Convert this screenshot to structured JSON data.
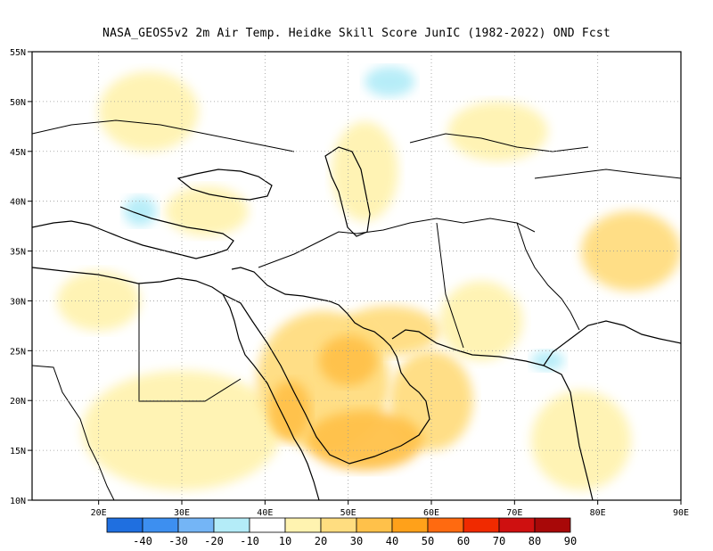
{
  "title": "NASA_GEOS5v2  2m Air Temp. Heidke Skill Score JunIC (1982-2022) OND Fcst",
  "map": {
    "lon_range": [
      12,
      90
    ],
    "lat_range": [
      10,
      55
    ],
    "lon_ticks": [
      "20E",
      "30E",
      "40E",
      "50E",
      "60E",
      "70E",
      "80E",
      "90E"
    ],
    "lon_tick_values": [
      20,
      30,
      40,
      50,
      60,
      70,
      80,
      90
    ],
    "lat_ticks": [
      "10N",
      "15N",
      "20N",
      "25N",
      "30N",
      "35N",
      "40N",
      "45N",
      "50N",
      "55N"
    ],
    "lat_tick_values": [
      10,
      15,
      20,
      25,
      30,
      35,
      40,
      45,
      50,
      55
    ],
    "gridlines": "dotted"
  },
  "colorbar": {
    "labels": [
      "-40",
      "-30",
      "-20",
      "-10",
      "10",
      "20",
      "30",
      "40",
      "50",
      "60",
      "70",
      "80",
      "90"
    ],
    "colors": [
      "#1f6fe0",
      "#3d8ff0",
      "#74b5f6",
      "#b4ecf8",
      "#ffffff",
      "#fff3b0",
      "#ffdd80",
      "#ffc14a",
      "#ffa11a",
      "#ff6a10",
      "#f02a00",
      "#cf1010",
      "#a80808"
    ]
  },
  "regions": [
    {
      "name": "arabia-sea-coast",
      "value": 40,
      "lon": 52,
      "lat": 16,
      "rx": 7,
      "ry": 3
    },
    {
      "name": "central-arabia",
      "value": 40,
      "lon": 50,
      "lat": 24,
      "rx": 3.5,
      "ry": 2.5
    },
    {
      "name": "red-sea-coast",
      "value": 40,
      "lon": 43,
      "lat": 19,
      "rx": 2.5,
      "ry": 3
    },
    {
      "name": "iran-south",
      "value": 30,
      "lon": 55,
      "lat": 27,
      "rx": 6,
      "ry": 2.5
    },
    {
      "name": "arabian-sea",
      "value": 30,
      "lon": 60,
      "lat": 20,
      "rx": 5,
      "ry": 5
    },
    {
      "name": "africa-northeast",
      "value": 20,
      "lon": 30,
      "lat": 17,
      "rx": 12,
      "ry": 6
    },
    {
      "name": "saudi-broad",
      "value": 30,
      "lon": 47,
      "lat": 22,
      "rx": 8,
      "ry": 7
    },
    {
      "name": "pakistan",
      "value": 20,
      "lon": 66,
      "lat": 28,
      "rx": 5,
      "ry": 4
    },
    {
      "name": "india-central",
      "value": 20,
      "lon": 78,
      "lat": 16,
      "rx": 6,
      "ry": 5
    },
    {
      "name": "tibet",
      "value": 30,
      "lon": 84,
      "lat": 35,
      "rx": 6,
      "ry": 4
    },
    {
      "name": "caspian-region",
      "value": 20,
      "lon": 52,
      "lat": 43,
      "rx": 4,
      "ry": 5
    },
    {
      "name": "turkey",
      "value": 20,
      "lon": 33,
      "lat": 39,
      "rx": 5,
      "ry": 2.5
    },
    {
      "name": "eastern-europe",
      "value": 20,
      "lon": 26,
      "lat": 49,
      "rx": 6,
      "ry": 4
    },
    {
      "name": "libya",
      "value": 20,
      "lon": 20,
      "lat": 30,
      "rx": 5,
      "ry": 3
    },
    {
      "name": "kazakh",
      "value": 20,
      "lon": 68,
      "lat": 47,
      "rx": 6,
      "ry": 3
    },
    {
      "name": "aegean",
      "value": -10,
      "lon": 25,
      "lat": 39,
      "rx": 2,
      "ry": 1.5
    },
    {
      "name": "siberia-south",
      "value": -10,
      "lon": 55,
      "lat": 52,
      "rx": 3,
      "ry": 1.5
    },
    {
      "name": "arabian-coast-blue",
      "value": -10,
      "lon": 74,
      "lat": 24,
      "rx": 2,
      "ry": 1
    }
  ]
}
